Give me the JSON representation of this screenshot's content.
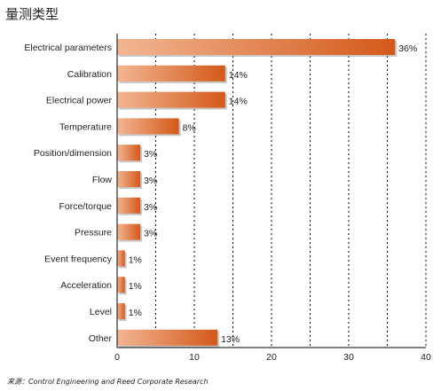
{
  "chart_data": {
    "type": "bar",
    "orientation": "horizontal",
    "title": "量测类型",
    "source": "来源：Control Engineering and Reed Corporate Research",
    "categories": [
      "Electrical parameters",
      "Calibration",
      "Electrical power",
      "Temperature",
      "Position/dimension",
      "Flow",
      "Force/torque",
      "Pressure",
      "Event frequency",
      "Acceleration",
      "Level",
      "Other"
    ],
    "values": [
      36,
      14,
      14,
      8,
      3,
      3,
      3,
      3,
      1,
      1,
      1,
      13
    ],
    "value_labels": [
      "36%",
      "14%",
      "14%",
      "8%",
      "3%",
      "3%",
      "3%",
      "3%",
      "1%",
      "1%",
      "1%",
      "13%"
    ],
    "xlim": [
      0,
      40
    ],
    "xticks": [
      0,
      10,
      20,
      30,
      40
    ],
    "grid": "vertical dashed",
    "colors": {
      "bar_start": "#f2b692",
      "bar_end": "#d4591a",
      "bar_shadow": "#9a9a9a",
      "axis": "#000000"
    }
  }
}
